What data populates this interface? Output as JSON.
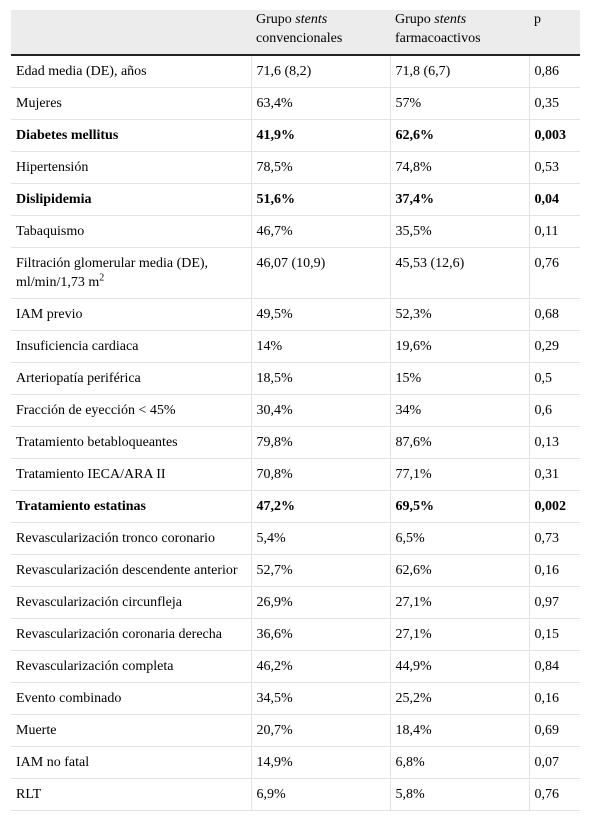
{
  "header": {
    "col1": "",
    "col2_line1_prefix": "Grupo ",
    "col2_line1_em": "stents",
    "col2_line2": "convencionales",
    "col3_line1_prefix": "Grupo ",
    "col3_line1_em": "stents",
    "col3_line2": "farmacoactivos",
    "col4": "p"
  },
  "rows": [
    {
      "label": "Edad media (DE), años",
      "conv": "71,6 (8,2)",
      "farm": "71,8 (6,7)",
      "p": "0,86",
      "bold": false
    },
    {
      "label": "Mujeres",
      "conv": "63,4%",
      "farm": "57%",
      "p": "0,35",
      "bold": false
    },
    {
      "label": "Diabetes mellitus",
      "conv": "41,9%",
      "farm": "62,6%",
      "p": "0,003",
      "bold": true
    },
    {
      "label": "Hipertensión",
      "conv": "78,5%",
      "farm": "74,8%",
      "p": "0,53",
      "bold": false
    },
    {
      "label": "Dislipidemia",
      "conv": "51,6%",
      "farm": "37,4%",
      "p": "0,04",
      "bold": true
    },
    {
      "label": "Tabaquismo",
      "conv": "46,7%",
      "farm": "35,5%",
      "p": "0,11",
      "bold": false
    },
    {
      "label": "Filtración glomerular media (DE), ml/min/1,73 m",
      "sup": "2",
      "conv": "46,07 (10,9)",
      "farm": "45,53 (12,6)",
      "p": "0,76",
      "bold": false
    },
    {
      "label": "IAM previo",
      "conv": "49,5%",
      "farm": "52,3%",
      "p": "0,68",
      "bold": false
    },
    {
      "label": "Insuficiencia cardiaca",
      "conv": "14%",
      "farm": "19,6%",
      "p": "0,29",
      "bold": false
    },
    {
      "label": "Arteriopatía periférica",
      "conv": "18,5%",
      "farm": "15%",
      "p": "0,5",
      "bold": false
    },
    {
      "label": "Fracción de eyección < 45%",
      "conv": "30,4%",
      "farm": "34%",
      "p": "0,6",
      "bold": false
    },
    {
      "label": "Tratamiento betabloqueantes",
      "conv": "79,8%",
      "farm": "87,6%",
      "p": "0,13",
      "bold": false
    },
    {
      "label": "Tratamiento IECA/ARA II",
      "conv": "70,8%",
      "farm": "77,1%",
      "p": "0,31",
      "bold": false
    },
    {
      "label": "Tratamiento estatinas",
      "conv": "47,2%",
      "farm": "69,5%",
      "p": "0,002",
      "bold": true
    },
    {
      "label": "Revascularización tronco coronario",
      "conv": "5,4%",
      "farm": "6,5%",
      "p": "0,73",
      "bold": false
    },
    {
      "label": "Revascularización descendente anterior",
      "conv": "52,7%",
      "farm": "62,6%",
      "p": "0,16",
      "bold": false
    },
    {
      "label": "Revascularización circunfleja",
      "conv": "26,9%",
      "farm": "27,1%",
      "p": "0,97",
      "bold": false
    },
    {
      "label": "Revascularización coronaria derecha",
      "conv": "36,6%",
      "farm": "27,1%",
      "p": "0,15",
      "bold": false
    },
    {
      "label": "Revascularización completa",
      "conv": "46,2%",
      "farm": "44,9%",
      "p": "0,84",
      "bold": false
    },
    {
      "label": "Evento combinado",
      "conv": "34,5%",
      "farm": "25,2%",
      "p": "0,16",
      "bold": false
    },
    {
      "label": "Muerte",
      "conv": "20,7%",
      "farm": "18,4%",
      "p": "0,69",
      "bold": false
    },
    {
      "label": "IAM no fatal",
      "conv": "14,9%",
      "farm": "6,8%",
      "p": "0,07",
      "bold": false
    },
    {
      "label": "RLT",
      "conv": "6,9%",
      "farm": "5,8%",
      "p": "0,76",
      "bold": false
    }
  ]
}
